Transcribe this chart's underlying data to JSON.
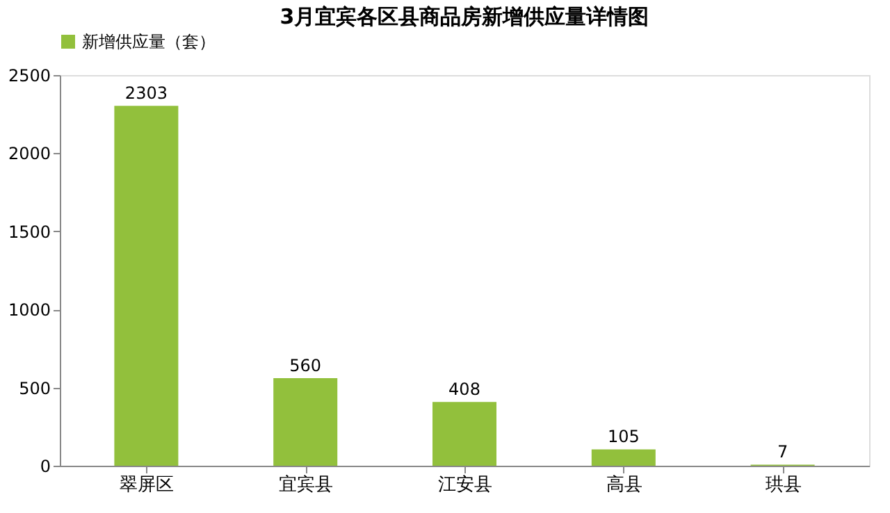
{
  "chart_data": {
    "type": "bar",
    "title": "3月宜宾各区县商品房新增供应量详情图",
    "categories": [
      "翠屏区",
      "宜宾县",
      "江安县",
      "高县",
      "珙县"
    ],
    "series": [
      {
        "name": "新增供应量（套）",
        "color": "#92c03c",
        "values": [
          2303,
          560,
          408,
          105,
          7
        ]
      }
    ],
    "ylim": [
      0,
      2500
    ],
    "yticks": [
      0,
      500,
      1000,
      1500,
      2000,
      2500
    ],
    "grid": false,
    "legend": "top",
    "data_labels": true
  }
}
